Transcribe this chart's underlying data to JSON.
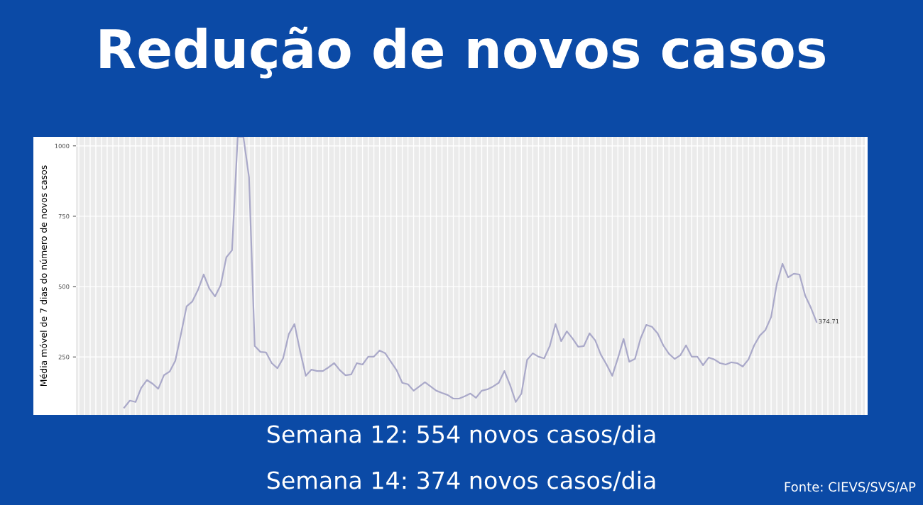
{
  "chart_data": {
    "type": "line",
    "title": "Redução de novos casos",
    "ylabel": "Média móvel de 7 dias do número de novos casos",
    "annotations": [
      "Semana 12: 554 novos casos/dia",
      "Semana 14: 374 novos casos/dia",
      "Fonte: CIEVS/SVS/AP"
    ],
    "categories": [
      null,
      null,
      null,
      null,
      null,
      null,
      null,
      null,
      null,
      null,
      null,
      null,
      null,
      null,
      null,
      null,
      null,
      null,
      null,
      null,
      null,
      null,
      null,
      null,
      null,
      null,
      null,
      null,
      null,
      null,
      null,
      null,
      null,
      null,
      null,
      null,
      null,
      null,
      null,
      null,
      null,
      null,
      null,
      null,
      null,
      null,
      null,
      null,
      null,
      null,
      null,
      null,
      null,
      null,
      null,
      null,
      null,
      null,
      null,
      null,
      null,
      null,
      null,
      null,
      null,
      null,
      null,
      null,
      null,
      null,
      null,
      null,
      null,
      null,
      null,
      null,
      null,
      null,
      null,
      null,
      null,
      null,
      null,
      null,
      null,
      null,
      null,
      null,
      null,
      null,
      null,
      null,
      null,
      null,
      null,
      null,
      null,
      null,
      null,
      null,
      null,
      null,
      null,
      null,
      null,
      null,
      null,
      null,
      null,
      null,
      null,
      null,
      null,
      null,
      null,
      null,
      null,
      null,
      null,
      null,
      null,
      null,
      null,
      null,
      null,
      null,
      null,
      null,
      null,
      null,
      null,
      null,
      null,
      null,
      null,
      null,
      null,
      null,
      null
    ],
    "series": [
      {
        "color": "#aaa9c9",
        "values": [
          null,
          null,
          null,
          null,
          null,
          null,
          null,
          null,
          70,
          95,
          90,
          140,
          168,
          155,
          137,
          185,
          198,
          236,
          331,
          430,
          447,
          488,
          543,
          493,
          465,
          505,
          604,
          629,
          1032,
          1032,
          888,
          289,
          268,
          266,
          228,
          210,
          245,
          331,
          367,
          271,
          183,
          205,
          200,
          200,
          213,
          228,
          203,
          185,
          188,
          228,
          223,
          251,
          251,
          273,
          263,
          233,
          203,
          158,
          153,
          130,
          145,
          160,
          145,
          130,
          122,
          115,
          102,
          102,
          110,
          120,
          105,
          130,
          135,
          145,
          158,
          200,
          150,
          90,
          120,
          240,
          263,
          251,
          245,
          289,
          367,
          306,
          341,
          316,
          286,
          289,
          334,
          309,
          258,
          223,
          183,
          246,
          314,
          233,
          243,
          316,
          364,
          357,
          334,
          291,
          261,
          243,
          256,
          291,
          251,
          251,
          221,
          248,
          241,
          228,
          223,
          231,
          228,
          216,
          241,
          291,
          326,
          346,
          392,
          510,
          581,
          533,
          546,
          543,
          468,
          425,
          374.71,
          null,
          null,
          null,
          null,
          null,
          null,
          null,
          null
        ],
        "value_labels": [
          null,
          null,
          null,
          null,
          null,
          null,
          null,
          null,
          null,
          null,
          null,
          null,
          null,
          null,
          null,
          null,
          null,
          null,
          null,
          null,
          null,
          null,
          null,
          null,
          null,
          null,
          null,
          null,
          null,
          null,
          null,
          null,
          null,
          null,
          null,
          null,
          null,
          null,
          null,
          null,
          null,
          null,
          null,
          null,
          null,
          null,
          null,
          null,
          null,
          null,
          null,
          null,
          null,
          null,
          null,
          null,
          null,
          null,
          null,
          null,
          null,
          null,
          null,
          null,
          null,
          null,
          null,
          null,
          null,
          null,
          null,
          null,
          null,
          null,
          null,
          null,
          null,
          null,
          null,
          null,
          null,
          null,
          null,
          null,
          null,
          null,
          null,
          null,
          null,
          null,
          null,
          null,
          null,
          null,
          null,
          null,
          null,
          null,
          null,
          null,
          null,
          null,
          null,
          null,
          null,
          null,
          null,
          null,
          null,
          null,
          null,
          null,
          null,
          null,
          null,
          null,
          null,
          null,
          null,
          null,
          null,
          null,
          null,
          null,
          null,
          null,
          null,
          null,
          null,
          null,
          "374.71",
          null,
          null,
          null,
          null,
          null,
          null,
          null,
          null
        ]
      }
    ],
    "ylim": [
      44,
      1032
    ],
    "yticks": [
      250,
      500,
      750,
      1000
    ],
    "grid": true,
    "legend": false
  }
}
